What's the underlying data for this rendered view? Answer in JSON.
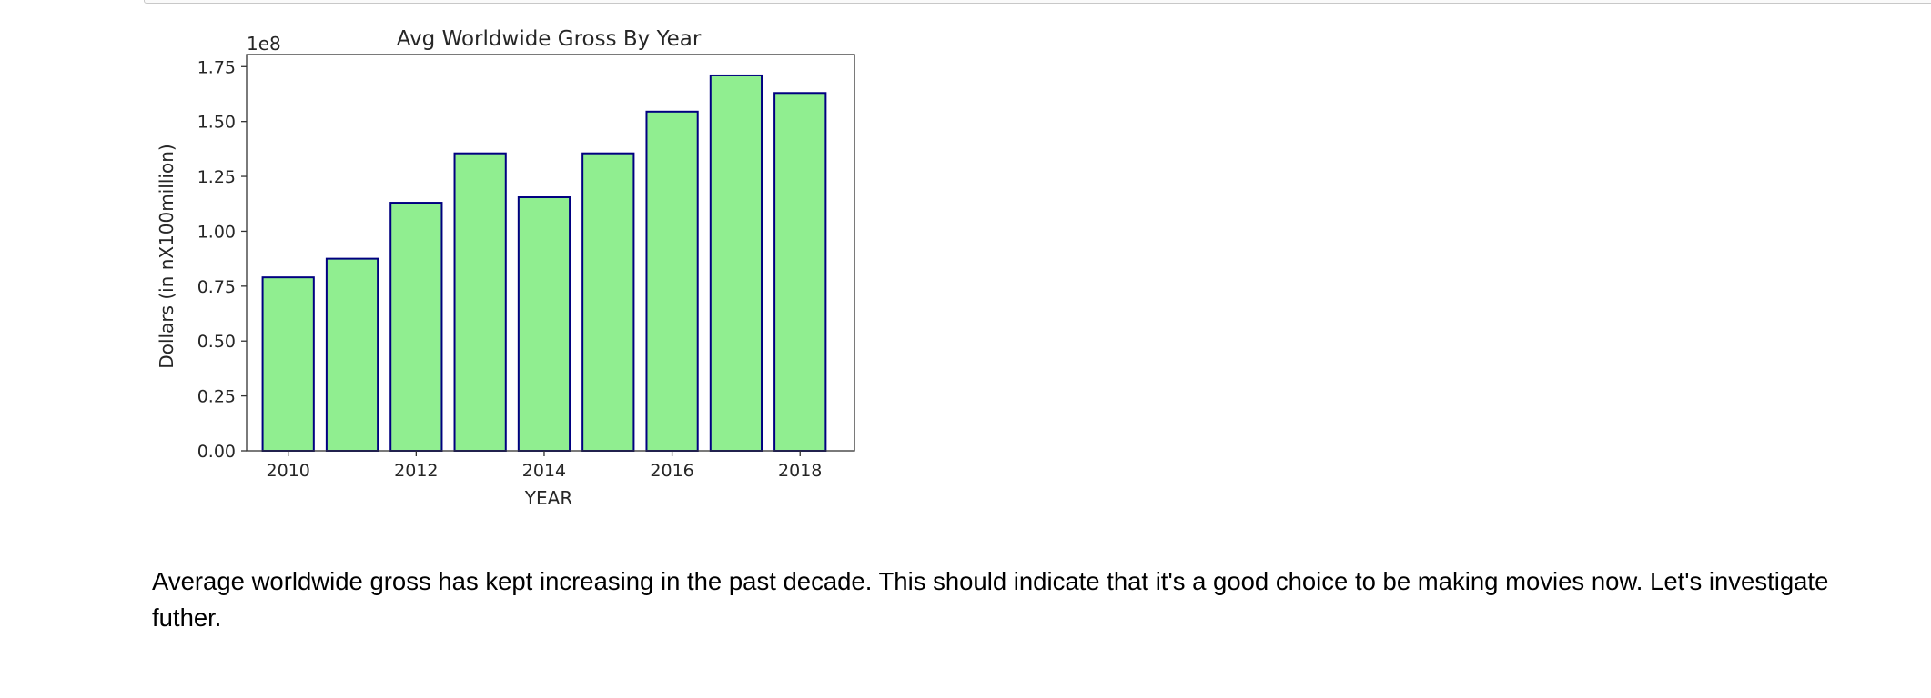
{
  "chart_data": {
    "type": "bar",
    "title": "Avg Worldwide Gross By Year",
    "xlabel": "YEAR",
    "ylabel": "Dollars (in nX100million)",
    "offset_text": "1e8",
    "categories": [
      2010,
      2011,
      2012,
      2013,
      2014,
      2015,
      2016,
      2017,
      2018
    ],
    "values": [
      79000000,
      87500000,
      113000000,
      135500000,
      115500000,
      135500000,
      154500000,
      171000000,
      163000000
    ],
    "xlim": [
      2009.35,
      2018.85
    ],
    "ylim": [
      0,
      180500000
    ],
    "xticks": [
      2010,
      2012,
      2014,
      2016,
      2018
    ],
    "xtick_labels": [
      "2010",
      "2012",
      "2014",
      "2016",
      "2018"
    ],
    "yticks": [
      0,
      25000000,
      50000000,
      75000000,
      100000000,
      125000000,
      150000000,
      175000000
    ],
    "ytick_labels": [
      "0.00",
      "0.25",
      "0.50",
      "0.75",
      "1.00",
      "1.25",
      "1.50",
      "1.75"
    ],
    "bar_fill": "#90ee90",
    "bar_edge": "#000080",
    "grid": false,
    "legend": "none"
  },
  "markdown": {
    "text": "Average worldwide gross has kept increasing in the past decade. This should indicate that it's a good choice to be making movies now. Let's investigate futher."
  }
}
